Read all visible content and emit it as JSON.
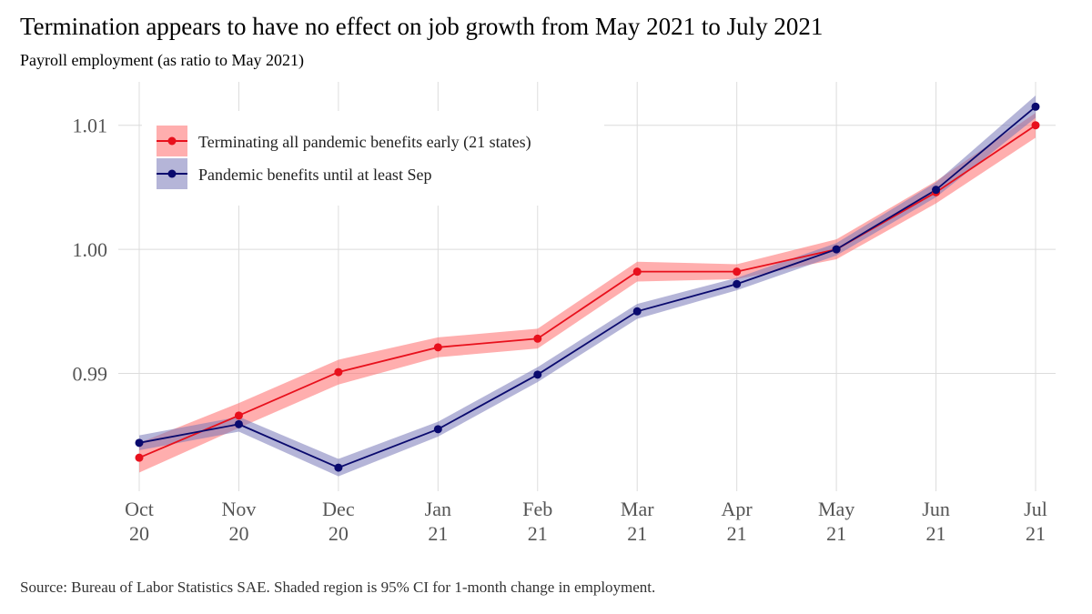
{
  "chart_data": {
    "type": "line",
    "title": "Termination appears to have no effect on job growth from May 2021 to July 2021",
    "subtitle": "Payroll employment (as ratio to May 2021)",
    "caption": "Source: Bureau of Labor Statistics SAE. Shaded region is 95% CI for 1-month change in employment.",
    "xlabel": "",
    "ylabel": "",
    "categories": [
      [
        "Oct",
        "20"
      ],
      [
        "Nov",
        "20"
      ],
      [
        "Dec",
        "20"
      ],
      [
        "Jan",
        "21"
      ],
      [
        "Feb",
        "21"
      ],
      [
        "Mar",
        "21"
      ],
      [
        "Apr",
        "21"
      ],
      [
        "May",
        "21"
      ],
      [
        "Jun",
        "21"
      ],
      [
        "Jul",
        "21"
      ]
    ],
    "ylim": [
      0.9805,
      1.0135
    ],
    "yticks": [
      0.99,
      1.0,
      1.01
    ],
    "ytick_labels": [
      "0.99",
      "1.00",
      "1.01"
    ],
    "grid": true,
    "legend_position": "top-left",
    "series": [
      {
        "name": "Terminating all pandemic benefits early (21 states)",
        "color": "#e8101c",
        "band_color": "#ff6b6b",
        "values": [
          0.9832,
          0.9866,
          0.9901,
          0.9921,
          0.9928,
          0.9982,
          0.9982,
          1.0,
          1.0046,
          1.01
        ],
        "lower": [
          0.982,
          0.9856,
          0.9891,
          0.9913,
          0.992,
          0.9974,
          0.9976,
          0.9992,
          1.0037,
          1.009
        ],
        "upper": [
          0.9844,
          0.9876,
          0.9911,
          0.9929,
          0.9936,
          0.999,
          0.9988,
          1.0008,
          1.0055,
          1.011
        ]
      },
      {
        "name": "Pandemic benefits until at least Sep",
        "color": "#0a0a6e",
        "band_color": "#7878b8",
        "values": [
          0.9844,
          0.9859,
          0.9824,
          0.9855,
          0.9899,
          0.995,
          0.9972,
          1.0,
          1.0048,
          1.0115
        ],
        "lower": [
          0.9838,
          0.9853,
          0.9817,
          0.9849,
          0.9893,
          0.9944,
          0.9967,
          0.9995,
          1.0042,
          1.0106
        ],
        "upper": [
          0.985,
          0.9865,
          0.9831,
          0.9861,
          0.9905,
          0.9956,
          0.9977,
          1.0005,
          1.0054,
          1.0124
        ]
      }
    ]
  }
}
